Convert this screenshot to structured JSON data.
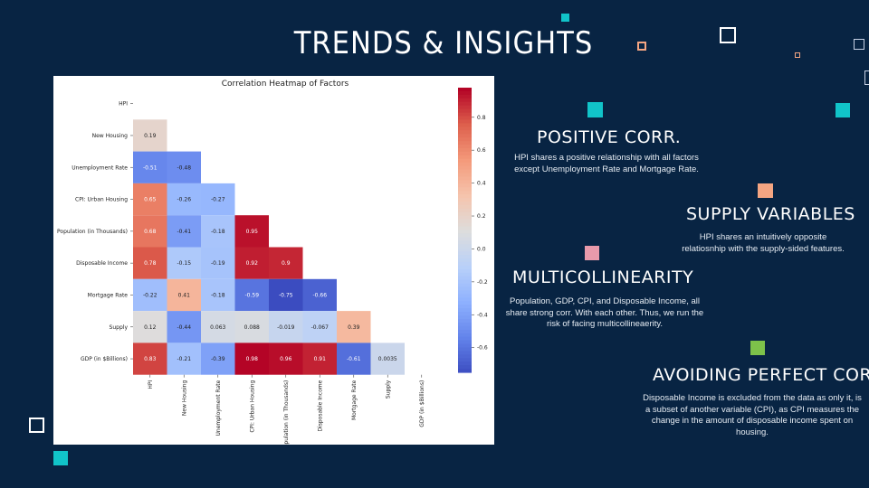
{
  "slide": {
    "title": "TRENDS & INSIGHTS"
  },
  "sections": [
    {
      "title": "POSITIVE CORR.",
      "text": "HPI shares a positive relationship with all factors except Unemployment Rate and Mortgage Rate."
    },
    {
      "title": "SUPPLY VARIABLES",
      "text": "HPI shares an intuitively opposite relatiosnhip with the supply-sided features."
    },
    {
      "title": "MULTICOLLINEARITY",
      "text": "Population, GDP, CPI, and Disposable Income, all share strong corr. With each other. Thus, we run the risk of facing multicollineaerity."
    },
    {
      "title": "AVOIDING PERFECT CORR.",
      "text": "Disposable Income is excluded from the data as only it, is a subset of another variable (CPI), as CPI measures the change in the amount of disposable income spent on housing."
    }
  ],
  "colors": {
    "background": "#082443",
    "teal": "#11c4c9",
    "peach": "#f4a582",
    "pink": "#e89aab",
    "green": "#7dc24a"
  },
  "chart_data": {
    "type": "heatmap",
    "title": "Correlation Heatmap of Factors",
    "variables": [
      "HPI",
      "New Housing",
      "Unemployment Rate",
      "CPI: Urban Housing",
      "Population (in Thousands)",
      "Disposable Income",
      "Mortgage Rate",
      "Supply",
      "GDP (in $Billions)"
    ],
    "matrix_lower": [
      [],
      [
        "0.19"
      ],
      [
        "-0.51",
        "-0.48"
      ],
      [
        "0.65",
        "-0.26",
        "-0.27"
      ],
      [
        "0.68",
        "-0.41",
        "-0.18",
        "0.95"
      ],
      [
        "0.78",
        "-0.15",
        "-0.19",
        "0.92",
        "0.9"
      ],
      [
        "-0.22",
        "0.41",
        "-0.18",
        "-0.59",
        "-0.75",
        "-0.66"
      ],
      [
        "0.12",
        "-0.44",
        "0.063",
        "0.088",
        "-0.019",
        "-0.067",
        "0.39"
      ],
      [
        "0.83",
        "-0.21",
        "-0.39",
        "0.98",
        "0.96",
        "0.91",
        "-0.61",
        "0.0035"
      ]
    ],
    "colorbar": {
      "range": [
        -0.75,
        0.98
      ],
      "ticks": [
        "0.8",
        "0.6",
        "0.4",
        "0.2",
        "0.0",
        "-0.2",
        "-0.4",
        "-0.6"
      ],
      "colormap": "coolwarm"
    },
    "mask": "upper-triangle-including-diagonal"
  }
}
